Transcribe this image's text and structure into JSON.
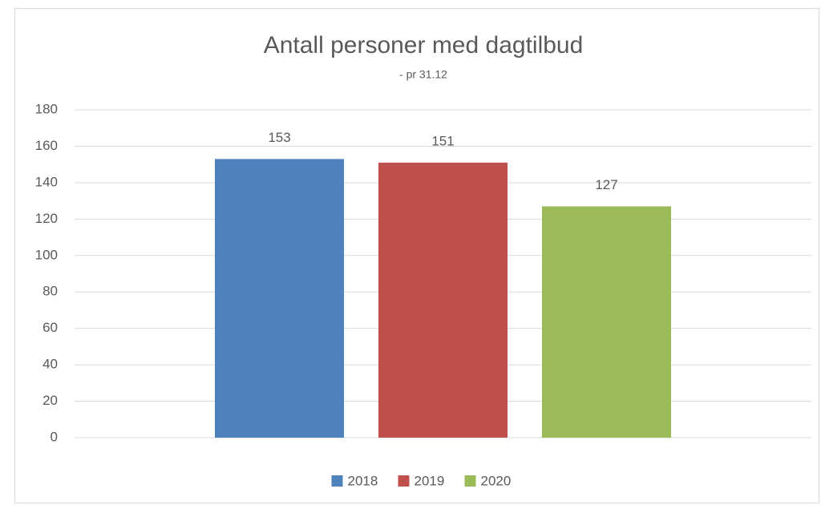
{
  "chart_data": {
    "type": "bar",
    "title": "Antall personer med dagtilbud",
    "subtitle": "- pr 31.12",
    "categories": [
      null
    ],
    "series": [
      {
        "name": "2018",
        "color": "#4f81bd",
        "values": [
          153
        ]
      },
      {
        "name": "2019",
        "color": "#c0504d",
        "values": [
          151
        ]
      },
      {
        "name": "2020",
        "color": "#9bbb59",
        "values": [
          127
        ]
      }
    ],
    "ylim": [
      0,
      180
    ],
    "yticks": [
      0,
      20,
      40,
      60,
      80,
      100,
      120,
      140,
      160,
      180
    ],
    "grid": true,
    "legend": "bottom"
  }
}
